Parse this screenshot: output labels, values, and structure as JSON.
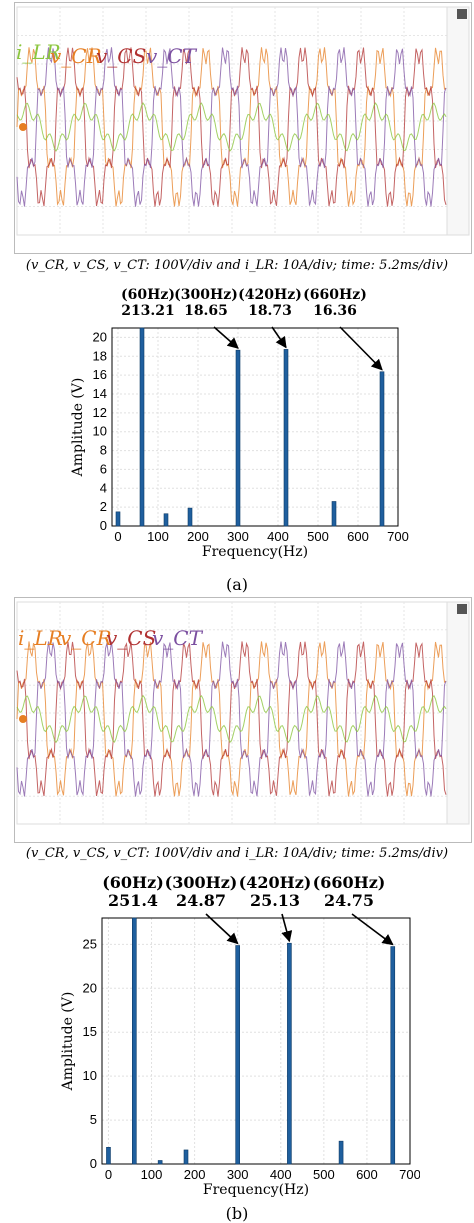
{
  "panel_a": {
    "caption": "(v_CR, v_CS, v_CT: 100V/div  and  i_LR: 10A/div; time: 5.2ms/div)",
    "panel_label": "(a)",
    "signal_labels": [
      "i_LR",
      "v_CR",
      "v_CS",
      "v_CT"
    ],
    "colors": {
      "i_LR": "#8cc63f",
      "v_CR": "#e67e22",
      "v_CS": "#b03030",
      "v_CT": "#7b4fa0"
    }
  },
  "panel_b": {
    "caption": "(v_CR, v_CS, v_CT: 100V/div  and  i_LR: 10A/div; time: 5.2ms/div)",
    "panel_label": "(b)",
    "signal_labels": [
      "i_LR",
      "v_CR",
      "v_CS",
      "v_CT"
    ],
    "colors": {
      "i_LR": "#8cc63f",
      "v_CR": "#e67e22",
      "v_CS": "#b03030",
      "v_CT": "#7b4fa0"
    }
  },
  "chart_data": [
    {
      "type": "bar",
      "xlabel": "Frequency(Hz)",
      "ylabel": "Amplitude (V)",
      "xlim": [
        -15,
        700
      ],
      "ylim": [
        0,
        21
      ],
      "xticks": [
        0,
        100,
        200,
        300,
        400,
        500,
        600,
        700
      ],
      "yticks": [
        0,
        2,
        4,
        6,
        8,
        10,
        12,
        14,
        16,
        18,
        20
      ],
      "grid": true,
      "bar_color": "#1f5f9e",
      "x": [
        0,
        60,
        120,
        180,
        300,
        420,
        540,
        660
      ],
      "values": [
        1.5,
        21,
        1.3,
        1.9,
        18.65,
        18.73,
        2.6,
        16.36
      ],
      "annotations": [
        {
          "freq": "(60Hz)",
          "value": "213.21"
        },
        {
          "freq": "(300Hz)",
          "value": "18.65"
        },
        {
          "freq": "(420Hz)",
          "value": "18.73"
        },
        {
          "freq": "(660Hz)",
          "value": "16.36"
        }
      ]
    },
    {
      "type": "bar",
      "xlabel": "Frequency(Hz)",
      "ylabel": "Amplitude (V)",
      "xlim": [
        -15,
        700
      ],
      "ylim": [
        0,
        28
      ],
      "xticks": [
        0,
        100,
        200,
        300,
        400,
        500,
        600,
        700
      ],
      "yticks": [
        0,
        5,
        10,
        15,
        20,
        25
      ],
      "grid": true,
      "bar_color": "#1f5f9e",
      "x": [
        0,
        60,
        120,
        180,
        300,
        420,
        540,
        660
      ],
      "values": [
        1.9,
        28,
        0.4,
        1.6,
        24.87,
        25.13,
        2.6,
        24.75
      ],
      "annotations": [
        {
          "freq": "(60Hz)",
          "value": "251.4"
        },
        {
          "freq": "(300Hz)",
          "value": "24.87"
        },
        {
          "freq": "(420Hz)",
          "value": "25.13"
        },
        {
          "freq": "(660Hz)",
          "value": "24.75"
        }
      ]
    }
  ]
}
